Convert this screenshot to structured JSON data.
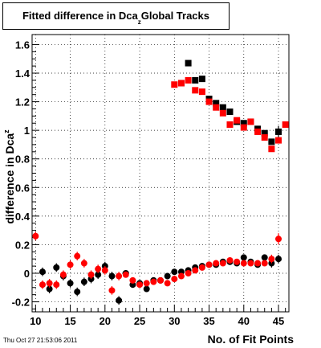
{
  "title": "Fitted difference in Dca",
  "title_subscript": "z",
  "title_suffix": "Global Tracks",
  "timestamp": "Thu Oct 27 21:53:06 2011",
  "chart_data": {
    "type": "scatter",
    "xlabel": "No. of Fit Points",
    "ylabel": "difference in Dca",
    "ylabel_subscript": "z",
    "xlim": [
      9.5,
      46.5
    ],
    "ylim": [
      -0.27,
      1.67
    ],
    "xticks": [
      10,
      15,
      20,
      25,
      30,
      35,
      40,
      45
    ],
    "yticks": [
      -0.2,
      0,
      0.2,
      0.4,
      0.6,
      0.8,
      1,
      1.2,
      1.4,
      1.6
    ],
    "ytick_labels": [
      "-0.2",
      "0",
      "0.2",
      "0.4",
      "0.6",
      "0.8",
      "1",
      "1.2",
      "1.4",
      "1.6"
    ],
    "grid": true,
    "series": [
      {
        "color": "#000000",
        "marker": "square",
        "points": [
          {
            "x": 11,
            "y": 0.01,
            "err": 0.03
          },
          {
            "x": 12,
            "y": -0.11,
            "err": 0.03
          },
          {
            "x": 13,
            "y": 0.04,
            "err": 0.03
          },
          {
            "x": 14,
            "y": -0.02,
            "err": 0.03
          },
          {
            "x": 15,
            "y": -0.07,
            "err": 0.03
          },
          {
            "x": 16,
            "y": -0.13,
            "err": 0.03
          },
          {
            "x": 17,
            "y": -0.06,
            "err": 0.03
          },
          {
            "x": 18,
            "y": -0.04,
            "err": 0.03
          },
          {
            "x": 19,
            "y": -0.01,
            "err": 0.03
          },
          {
            "x": 20,
            "y": 0.05,
            "err": 0.03
          },
          {
            "x": 21,
            "y": -0.02,
            "err": 0.03
          },
          {
            "x": 22,
            "y": -0.19,
            "err": 0.03
          },
          {
            "x": 23,
            "y": 0.0,
            "err": 0.02
          },
          {
            "x": 24,
            "y": -0.08,
            "err": 0.02
          },
          {
            "x": 25,
            "y": -0.07,
            "err": 0.02
          },
          {
            "x": 26,
            "y": -0.11,
            "err": 0.02
          },
          {
            "x": 27,
            "y": -0.05,
            "err": 0.02
          },
          {
            "x": 28,
            "y": -0.05,
            "err": 0.02
          },
          {
            "x": 29,
            "y": -0.02,
            "err": 0.02
          },
          {
            "x": 30,
            "y": 0.01,
            "err": 0.02
          },
          {
            "x": 31,
            "y": 0.01,
            "err": 0.02
          },
          {
            "x": 32,
            "y": 0.02,
            "err": 0.02
          },
          {
            "x": 33,
            "y": 0.04,
            "err": 0.02
          },
          {
            "x": 34,
            "y": 0.05,
            "err": 0.02
          },
          {
            "x": 35,
            "y": 0.06,
            "err": 0.02
          },
          {
            "x": 36,
            "y": 0.06,
            "err": 0.02
          },
          {
            "x": 37,
            "y": 0.08,
            "err": 0.02
          },
          {
            "x": 38,
            "y": 0.08,
            "err": 0.02
          },
          {
            "x": 39,
            "y": 0.07,
            "err": 0.02
          },
          {
            "x": 40,
            "y": 0.11,
            "err": 0.02
          },
          {
            "x": 41,
            "y": 0.08,
            "err": 0.02
          },
          {
            "x": 42,
            "y": 0.06,
            "err": 0.02
          },
          {
            "x": 43,
            "y": 0.11,
            "err": 0.02
          },
          {
            "x": 44,
            "y": 0.07,
            "err": 0.03
          },
          {
            "x": 45,
            "y": 0.1,
            "err": 0.03
          },
          {
            "x": 31,
            "y": 1.33,
            "err": 0.0
          },
          {
            "x": 32,
            "y": 1.47,
            "err": 0.02
          },
          {
            "x": 33,
            "y": 1.35,
            "err": 0.0
          },
          {
            "x": 34,
            "y": 1.36,
            "err": 0.0
          },
          {
            "x": 35,
            "y": 1.22,
            "err": 0.0
          },
          {
            "x": 36,
            "y": 1.19,
            "err": 0.0
          },
          {
            "x": 37,
            "y": 1.16,
            "err": 0.0
          },
          {
            "x": 38,
            "y": 1.13,
            "err": 0.0
          },
          {
            "x": 39,
            "y": 1.06,
            "err": 0.0
          },
          {
            "x": 40,
            "y": 1.05,
            "err": 0.0
          },
          {
            "x": 41,
            "y": 1.06,
            "err": 0.0
          },
          {
            "x": 42,
            "y": 1.01,
            "err": 0.0
          },
          {
            "x": 43,
            "y": 0.98,
            "err": 0.0
          },
          {
            "x": 44,
            "y": 0.92,
            "err": 0.0
          },
          {
            "x": 45,
            "y": 0.99,
            "err": 0.04
          }
        ]
      },
      {
        "color": "#ff0000",
        "marker": "square",
        "points": [
          {
            "x": 10,
            "y": 0.26,
            "err": 0.03
          },
          {
            "x": 11,
            "y": -0.08,
            "err": 0.03
          },
          {
            "x": 12,
            "y": -0.07,
            "err": 0.03
          },
          {
            "x": 13,
            "y": -0.08,
            "err": 0.03
          },
          {
            "x": 14,
            "y": -0.01,
            "err": 0.03
          },
          {
            "x": 15,
            "y": 0.06,
            "err": 0.03
          },
          {
            "x": 16,
            "y": 0.12,
            "err": 0.03
          },
          {
            "x": 17,
            "y": 0.07,
            "err": 0.03
          },
          {
            "x": 18,
            "y": -0.01,
            "err": 0.03
          },
          {
            "x": 19,
            "y": 0.03,
            "err": 0.03
          },
          {
            "x": 20,
            "y": 0.02,
            "err": 0.03
          },
          {
            "x": 21,
            "y": -0.12,
            "err": 0.03
          },
          {
            "x": 22,
            "y": -0.02,
            "err": 0.03
          },
          {
            "x": 23,
            "y": -0.01,
            "err": 0.02
          },
          {
            "x": 24,
            "y": -0.05,
            "err": 0.02
          },
          {
            "x": 25,
            "y": -0.08,
            "err": 0.02
          },
          {
            "x": 26,
            "y": -0.07,
            "err": 0.02
          },
          {
            "x": 27,
            "y": -0.06,
            "err": 0.02
          },
          {
            "x": 28,
            "y": -0.05,
            "err": 0.02
          },
          {
            "x": 29,
            "y": -0.07,
            "err": 0.02
          },
          {
            "x": 30,
            "y": -0.04,
            "err": 0.02
          },
          {
            "x": 31,
            "y": -0.02,
            "err": 0.02
          },
          {
            "x": 32,
            "y": 0.0,
            "err": 0.02
          },
          {
            "x": 33,
            "y": 0.02,
            "err": 0.02
          },
          {
            "x": 34,
            "y": 0.04,
            "err": 0.02
          },
          {
            "x": 35,
            "y": 0.06,
            "err": 0.02
          },
          {
            "x": 36,
            "y": 0.07,
            "err": 0.02
          },
          {
            "x": 37,
            "y": 0.07,
            "err": 0.02
          },
          {
            "x": 38,
            "y": 0.09,
            "err": 0.02
          },
          {
            "x": 39,
            "y": 0.08,
            "err": 0.02
          },
          {
            "x": 40,
            "y": 0.07,
            "err": 0.02
          },
          {
            "x": 41,
            "y": 0.07,
            "err": 0.02
          },
          {
            "x": 42,
            "y": 0.07,
            "err": 0.02
          },
          {
            "x": 43,
            "y": 0.07,
            "err": 0.02
          },
          {
            "x": 44,
            "y": 0.1,
            "err": 0.03
          },
          {
            "x": 45,
            "y": 0.24,
            "err": 0.04
          },
          {
            "x": 30,
            "y": 1.32,
            "err": 0.0
          },
          {
            "x": 31,
            "y": 1.33,
            "err": 0.0
          },
          {
            "x": 32,
            "y": 1.35,
            "err": 0.0
          },
          {
            "x": 33,
            "y": 1.28,
            "err": 0.0
          },
          {
            "x": 34,
            "y": 1.27,
            "err": 0.0
          },
          {
            "x": 35,
            "y": 1.2,
            "err": 0.0
          },
          {
            "x": 36,
            "y": 1.16,
            "err": 0.0
          },
          {
            "x": 37,
            "y": 1.12,
            "err": 0.0
          },
          {
            "x": 38,
            "y": 1.04,
            "err": 0.0
          },
          {
            "x": 39,
            "y": 1.07,
            "err": 0.0
          },
          {
            "x": 40,
            "y": 1.02,
            "err": 0.0
          },
          {
            "x": 41,
            "y": 1.06,
            "err": 0.0
          },
          {
            "x": 42,
            "y": 0.99,
            "err": 0.0
          },
          {
            "x": 43,
            "y": 0.95,
            "err": 0.0
          },
          {
            "x": 44,
            "y": 0.87,
            "err": 0.0
          },
          {
            "x": 45,
            "y": 0.93,
            "err": 0.0
          },
          {
            "x": 46,
            "y": 1.04,
            "err": 0.0
          }
        ]
      }
    ]
  }
}
